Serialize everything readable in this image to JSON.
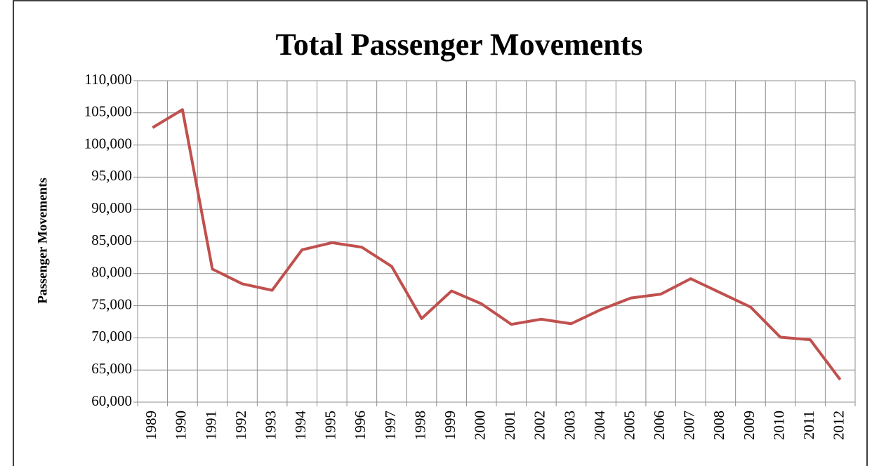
{
  "chart_data": {
    "type": "line",
    "title": "Total Passenger Movements",
    "y_label": "Passenger Movements",
    "categories": [
      "1989",
      "1990",
      "1991",
      "1992",
      "1993",
      "1994",
      "1995",
      "1996",
      "1997",
      "1998",
      "1999",
      "2000",
      "2001",
      "2002",
      "2003",
      "2004",
      "2005",
      "2006",
      "2007",
      "2008",
      "2009",
      "2010",
      "2011",
      "2012"
    ],
    "series": [
      {
        "name": "Total Passenger Movements",
        "color": "#c0504d",
        "values": [
          102700,
          105500,
          80700,
          78400,
          77400,
          83700,
          84800,
          84100,
          81100,
          73000,
          77300,
          75300,
          72100,
          72900,
          72200,
          74400,
          76200,
          76800,
          79200,
          77000,
          74800,
          70100,
          69700,
          63500
        ]
      }
    ],
    "ylim": [
      60000,
      110000
    ],
    "yticks": [
      {
        "value": 60000,
        "label": "60,000"
      },
      {
        "value": 65000,
        "label": "65,000"
      },
      {
        "value": 70000,
        "label": "70,000"
      },
      {
        "value": 75000,
        "label": "75,000"
      },
      {
        "value": 80000,
        "label": "80,000"
      },
      {
        "value": 85000,
        "label": "85,000"
      },
      {
        "value": 90000,
        "label": "90,000"
      },
      {
        "value": 95000,
        "label": "95,000"
      },
      {
        "value": 100000,
        "label": "100,000"
      },
      {
        "value": 105000,
        "label": "105,000"
      },
      {
        "value": 110000,
        "label": "110,000"
      }
    ],
    "grid": true
  }
}
